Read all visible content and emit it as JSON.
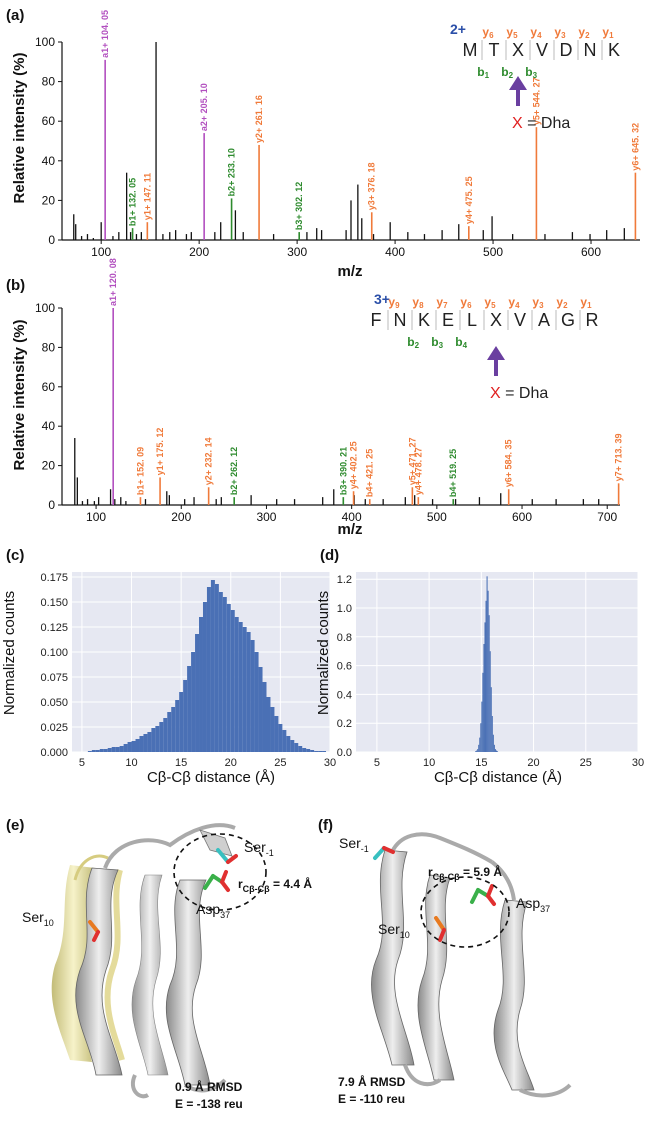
{
  "panels": {
    "a": {
      "label": "(a)"
    },
    "b": {
      "label": "(b)"
    },
    "c": {
      "label": "(c)"
    },
    "d": {
      "label": "(d)"
    },
    "e": {
      "label": "(e)"
    },
    "f": {
      "label": "(f)"
    }
  },
  "colors": {
    "a_ion": "#b24fbf",
    "b_ion": "#2e8b2e",
    "y_ion": "#f07a3a",
    "charge": "#2b4fa8",
    "dha": "#e02020",
    "arrow": "#6a3fa0",
    "hist_fill": "#4a70b5",
    "hist_bg": "#e6e8f2"
  },
  "chart_data": [
    {
      "type": "bar",
      "panel": "a",
      "xlabel": "m/z",
      "ylabel": "Relative intensity (%)",
      "xlim": [
        60,
        650
      ],
      "ylim": [
        0,
        100
      ],
      "xticks": [
        100,
        200,
        300,
        400,
        500,
        600
      ],
      "yticks": [
        0,
        20,
        40,
        60,
        80,
        100
      ],
      "peaks": [
        {
          "x": 72,
          "y": 13
        },
        {
          "x": 74,
          "y": 8
        },
        {
          "x": 80,
          "y": 2
        },
        {
          "x": 86,
          "y": 3
        },
        {
          "x": 92,
          "y": 1
        },
        {
          "x": 100,
          "y": 9
        },
        {
          "x": 112,
          "y": 2
        },
        {
          "x": 118,
          "y": 4
        },
        {
          "x": 126,
          "y": 34
        },
        {
          "x": 130,
          "y": 4
        },
        {
          "x": 136,
          "y": 3
        },
        {
          "x": 141,
          "y": 4
        },
        {
          "x": 156,
          "y": 100
        },
        {
          "x": 163,
          "y": 3
        },
        {
          "x": 170,
          "y": 4
        },
        {
          "x": 176,
          "y": 5
        },
        {
          "x": 187,
          "y": 3
        },
        {
          "x": 192,
          "y": 4
        },
        {
          "x": 216,
          "y": 4
        },
        {
          "x": 222,
          "y": 9
        },
        {
          "x": 237,
          "y": 15
        },
        {
          "x": 245,
          "y": 4
        },
        {
          "x": 276,
          "y": 3
        },
        {
          "x": 310,
          "y": 4
        },
        {
          "x": 320,
          "y": 6
        },
        {
          "x": 325,
          "y": 5
        },
        {
          "x": 350,
          "y": 5
        },
        {
          "x": 355,
          "y": 20
        },
        {
          "x": 362,
          "y": 28
        },
        {
          "x": 366,
          "y": 11
        },
        {
          "x": 378,
          "y": 3
        },
        {
          "x": 395,
          "y": 9
        },
        {
          "x": 413,
          "y": 4
        },
        {
          "x": 430,
          "y": 3
        },
        {
          "x": 448,
          "y": 5
        },
        {
          "x": 465,
          "y": 8
        },
        {
          "x": 490,
          "y": 5
        },
        {
          "x": 499,
          "y": 12
        },
        {
          "x": 520,
          "y": 3
        },
        {
          "x": 553,
          "y": 3
        },
        {
          "x": 581,
          "y": 4
        },
        {
          "x": 599,
          "y": 3
        },
        {
          "x": 616,
          "y": 5
        },
        {
          "x": 634,
          "y": 6
        }
      ],
      "labeled_peaks": [
        {
          "x": 104.05,
          "y": 91,
          "label": "a1+ 104. 05",
          "ion": "a"
        },
        {
          "x": 205.1,
          "y": 54,
          "label": "a2+ 205. 10",
          "ion": "a"
        },
        {
          "x": 132.05,
          "y": 6,
          "label": "b1+ 132. 05",
          "ion": "b"
        },
        {
          "x": 233.1,
          "y": 21,
          "label": "b2+ 233. 10",
          "ion": "b"
        },
        {
          "x": 302.12,
          "y": 4,
          "label": "b3+ 302. 12",
          "ion": "b"
        },
        {
          "x": 147.11,
          "y": 9,
          "label": "y1+ 147. 11",
          "ion": "y"
        },
        {
          "x": 261.16,
          "y": 48,
          "label": "y2+ 261. 16",
          "ion": "y"
        },
        {
          "x": 376.18,
          "y": 14,
          "label": "y3+ 376. 18",
          "ion": "y"
        },
        {
          "x": 475.25,
          "y": 7,
          "label": "y4+ 475. 25",
          "ion": "y"
        },
        {
          "x": 544.27,
          "y": 57,
          "label": "y5+ 544. 27",
          "ion": "y"
        },
        {
          "x": 645.32,
          "y": 34,
          "label": "y6+ 645. 32",
          "ion": "y"
        }
      ],
      "peptide": {
        "charge": "2+",
        "residues": [
          "M",
          "T",
          "X",
          "V",
          "D",
          "N",
          "K"
        ],
        "y_ions": [
          {
            "t": "y",
            "n": "6"
          },
          {
            "t": "y",
            "n": "5"
          },
          {
            "t": "y",
            "n": "4"
          },
          {
            "t": "y",
            "n": "3"
          },
          {
            "t": "y",
            "n": "2"
          },
          {
            "t": "y",
            "n": "1"
          }
        ],
        "b_ions": [
          {
            "t": "b",
            "n": "1"
          },
          {
            "t": "b",
            "n": "2"
          },
          {
            "t": "b",
            "n": "3"
          }
        ],
        "legend": "X = Dha",
        "legend_x": "X",
        "legend_rest": " = Dha"
      }
    },
    {
      "type": "bar",
      "panel": "b",
      "xlabel": "m/z",
      "ylabel": "Relative intensity (%)",
      "xlim": [
        60,
        715
      ],
      "ylim": [
        0,
        100
      ],
      "xticks": [
        100,
        200,
        300,
        400,
        500,
        600,
        700
      ],
      "yticks": [
        0,
        20,
        40,
        60,
        80,
        100
      ],
      "peaks": [
        {
          "x": 75,
          "y": 34
        },
        {
          "x": 78,
          "y": 14
        },
        {
          "x": 84,
          "y": 2
        },
        {
          "x": 90,
          "y": 3
        },
        {
          "x": 98,
          "y": 2
        },
        {
          "x": 103,
          "y": 4
        },
        {
          "x": 117,
          "y": 8
        },
        {
          "x": 122,
          "y": 3
        },
        {
          "x": 129,
          "y": 4
        },
        {
          "x": 135,
          "y": 2
        },
        {
          "x": 158,
          "y": 3
        },
        {
          "x": 183,
          "y": 7
        },
        {
          "x": 186,
          "y": 5
        },
        {
          "x": 204,
          "y": 3
        },
        {
          "x": 215,
          "y": 4
        },
        {
          "x": 241,
          "y": 3
        },
        {
          "x": 247,
          "y": 4
        },
        {
          "x": 282,
          "y": 5
        },
        {
          "x": 312,
          "y": 3
        },
        {
          "x": 333,
          "y": 3
        },
        {
          "x": 366,
          "y": 4
        },
        {
          "x": 379,
          "y": 8
        },
        {
          "x": 403,
          "y": 5
        },
        {
          "x": 416,
          "y": 3
        },
        {
          "x": 437,
          "y": 3
        },
        {
          "x": 463,
          "y": 4
        },
        {
          "x": 474,
          "y": 5
        },
        {
          "x": 495,
          "y": 3
        },
        {
          "x": 522,
          "y": 3
        },
        {
          "x": 550,
          "y": 4
        },
        {
          "x": 575,
          "y": 6
        },
        {
          "x": 612,
          "y": 3
        },
        {
          "x": 640,
          "y": 3
        },
        {
          "x": 672,
          "y": 3
        },
        {
          "x": 690,
          "y": 3
        }
      ],
      "labeled_peaks": [
        {
          "x": 120.08,
          "y": 100,
          "label": "a1+ 120. 08",
          "ion": "a"
        },
        {
          "x": 152.09,
          "y": 4,
          "label": "b1+ 152. 09",
          "ion": "y"
        },
        {
          "x": 175.12,
          "y": 14,
          "label": "y1+ 175. 12",
          "ion": "y"
        },
        {
          "x": 232.14,
          "y": 9,
          "label": "y2+ 232. 14",
          "ion": "y"
        },
        {
          "x": 262.12,
          "y": 4,
          "label": "b2+ 262. 12",
          "ion": "b"
        },
        {
          "x": 390.21,
          "y": 4,
          "label": "b3+ 390. 21",
          "ion": "b"
        },
        {
          "x": 402.25,
          "y": 7,
          "label": "y4+ 402. 25",
          "ion": "y"
        },
        {
          "x": 421.25,
          "y": 3,
          "label": "b4+ 421. 25",
          "ion": "y"
        },
        {
          "x": 471.27,
          "y": 9,
          "label": "y5+ 471. 27",
          "ion": "y"
        },
        {
          "x": 478.27,
          "y": 4,
          "label": "y4+ 478. 27",
          "ion": "y"
        },
        {
          "x": 519.25,
          "y": 3,
          "label": "b4+ 519. 25",
          "ion": "b"
        },
        {
          "x": 584.35,
          "y": 8,
          "label": "y6+ 584. 35",
          "ion": "y"
        },
        {
          "x": 713.39,
          "y": 11,
          "label": "y7+ 713. 39",
          "ion": "y"
        }
      ],
      "peptide": {
        "charge": "3+",
        "residues": [
          "F",
          "N",
          "K",
          "E",
          "L",
          "X",
          "V",
          "A",
          "G",
          "R"
        ],
        "y_ions": [
          {
            "t": "y",
            "n": "9"
          },
          {
            "t": "y",
            "n": "8"
          },
          {
            "t": "y",
            "n": "7"
          },
          {
            "t": "y",
            "n": "6"
          },
          {
            "t": "y",
            "n": "5"
          },
          {
            "t": "y",
            "n": "4"
          },
          {
            "t": "y",
            "n": "3"
          },
          {
            "t": "y",
            "n": "2"
          },
          {
            "t": "y",
            "n": "1"
          }
        ],
        "b_ions": [
          {
            "t": "b",
            "n": "2"
          },
          {
            "t": "b",
            "n": "3"
          },
          {
            "t": "b",
            "n": "4"
          }
        ],
        "legend": "X = Dha",
        "legend_x": "X",
        "legend_rest": " = Dha"
      }
    },
    {
      "type": "histogram",
      "panel": "c",
      "xlabel": "Cβ-Cβ distance (Å)",
      "ylabel": "Normalized counts",
      "xlim": [
        4,
        30
      ],
      "ylim": [
        0,
        0.18
      ],
      "xticks": [
        5,
        10,
        15,
        20,
        25,
        30
      ],
      "yticks": [
        0.0,
        0.025,
        0.05,
        0.075,
        0.1,
        0.125,
        0.15,
        0.175
      ],
      "ytick_labels": [
        "0.000",
        "0.025",
        "0.050",
        "0.075",
        "0.100",
        "0.125",
        "0.150",
        "0.175"
      ],
      "bin_start": 4.4,
      "bin_width": 0.4,
      "counts": [
        0,
        0,
        0,
        0.001,
        0.002,
        0.002,
        0.003,
        0.003,
        0.004,
        0.005,
        0.005,
        0.006,
        0.008,
        0.01,
        0.011,
        0.013,
        0.016,
        0.018,
        0.02,
        0.024,
        0.026,
        0.03,
        0.034,
        0.04,
        0.045,
        0.052,
        0.06,
        0.072,
        0.086,
        0.1,
        0.118,
        0.135,
        0.15,
        0.165,
        0.172,
        0.168,
        0.16,
        0.155,
        0.148,
        0.142,
        0.135,
        0.13,
        0.125,
        0.12,
        0.112,
        0.1,
        0.085,
        0.07,
        0.055,
        0.045,
        0.036,
        0.028,
        0.022,
        0.016,
        0.012,
        0.009,
        0.006,
        0.004,
        0.003,
        0.002,
        0.001,
        0.001,
        0.001,
        0
      ]
    },
    {
      "type": "histogram",
      "panel": "d",
      "xlabel": "Cβ-Cβ distance (Å)",
      "ylabel": "Normalized counts",
      "xlim": [
        3,
        30
      ],
      "ylim": [
        0,
        1.25
      ],
      "xticks": [
        5,
        10,
        15,
        20,
        25,
        30
      ],
      "yticks": [
        0.0,
        0.2,
        0.4,
        0.6,
        0.8,
        1.0,
        1.2
      ],
      "ytick_labels": [
        "0.0",
        "0.2",
        "0.4",
        "0.6",
        "0.8",
        "1.0",
        "1.2"
      ],
      "bin_start": 14.4,
      "bin_width": 0.1,
      "counts": [
        0.005,
        0.01,
        0.02,
        0.05,
        0.1,
        0.2,
        0.35,
        0.55,
        0.75,
        0.9,
        1.05,
        1.22,
        1.12,
        0.95,
        0.7,
        0.45,
        0.25,
        0.12,
        0.05,
        0.02,
        0.01,
        0.005
      ]
    }
  ],
  "structures": {
    "e": {
      "ser_m1": "Ser",
      "ser_m1_sub": "-1",
      "ser10": "Ser",
      "ser10_sub": "10",
      "asp37": "Asp",
      "asp37_sub": "37",
      "r_label": "r",
      "r_sub": "Cβ-Cβ",
      "r_value": " = 4.4 Å",
      "rmsd": "0.9 Å RMSD",
      "energy": "E = -138 reu"
    },
    "f": {
      "ser_m1": "Ser",
      "ser_m1_sub": "-1",
      "ser10": "Ser",
      "ser10_sub": "10",
      "asp37": "Asp",
      "asp37_sub": "37",
      "r_label": "r",
      "r_sub": "Cβ-Cβ",
      "r_value": " = 5.9 Å",
      "rmsd": "7.9 Å RMSD",
      "energy": "E = -110 reu"
    }
  }
}
